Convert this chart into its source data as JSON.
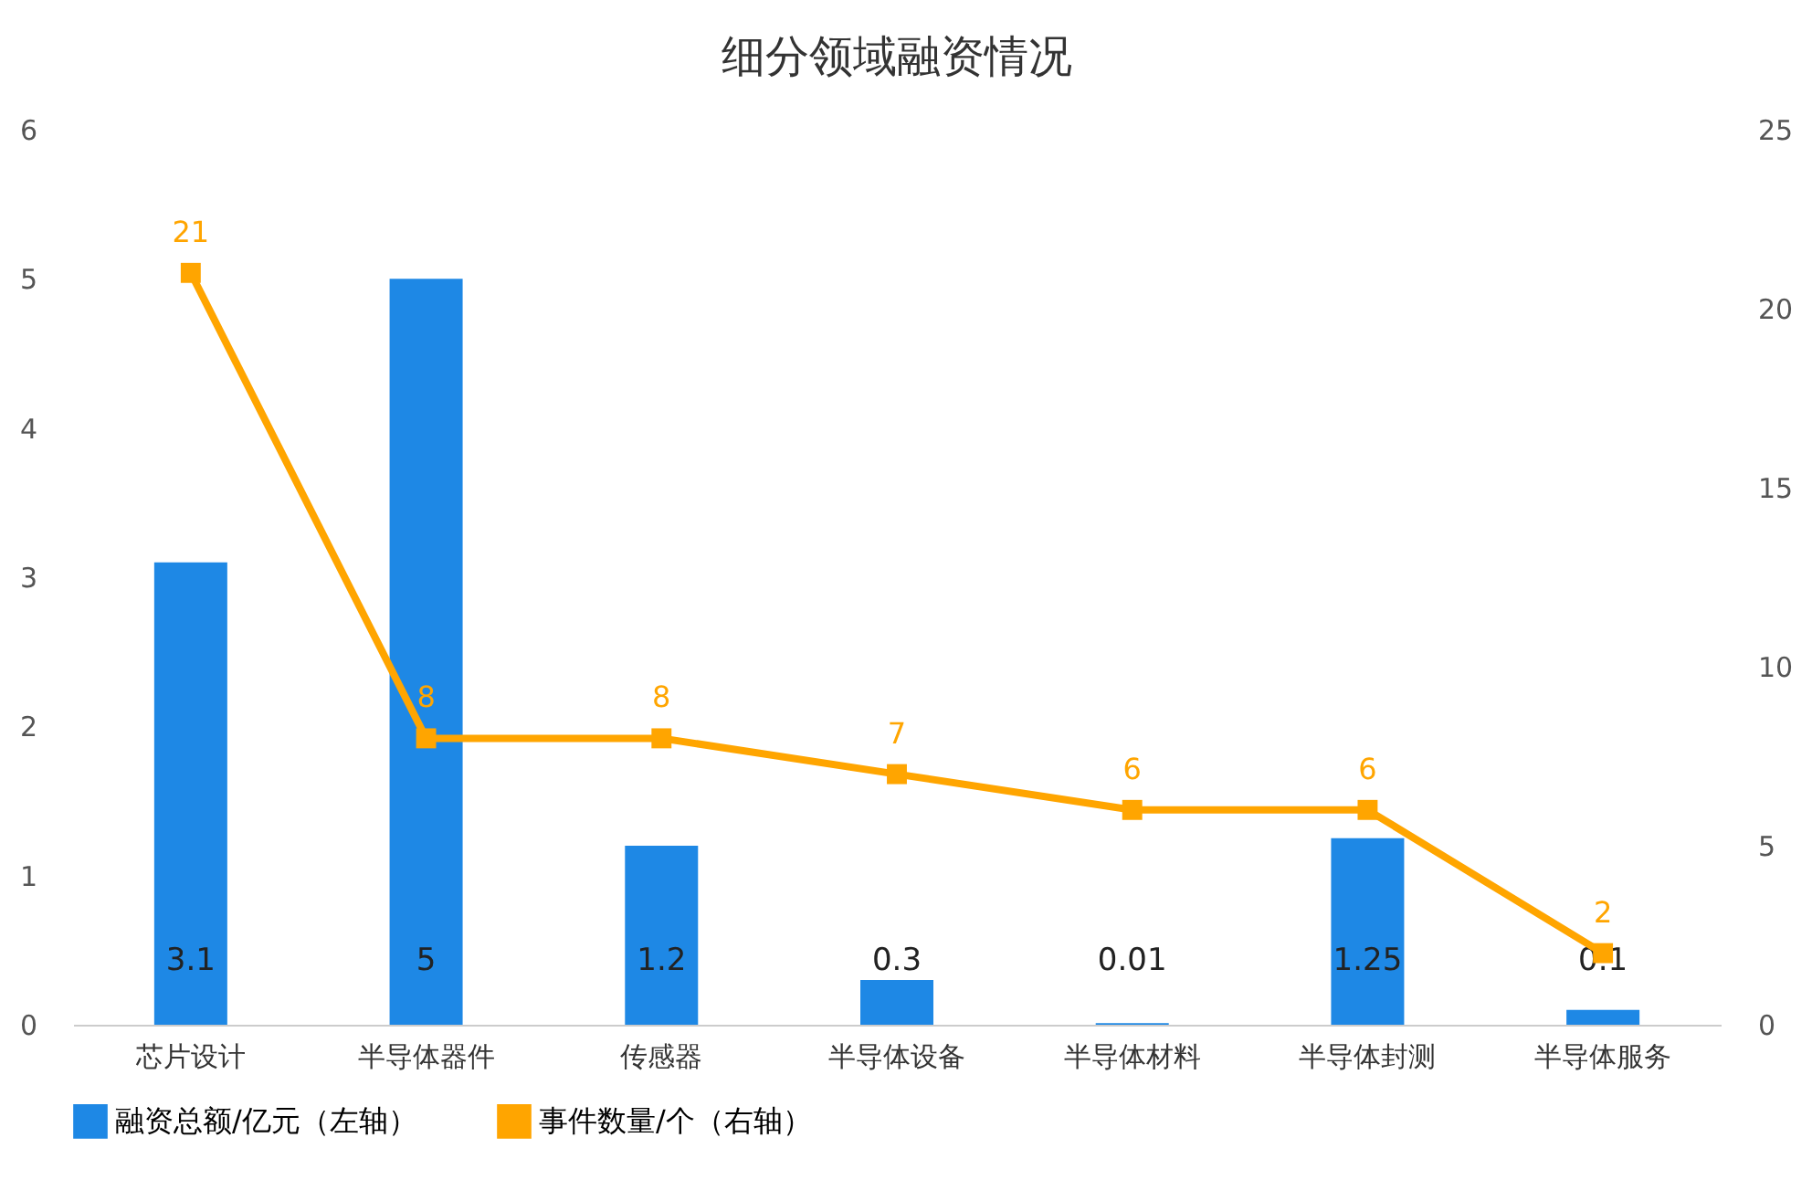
{
  "chart_data": {
    "type": "bar",
    "title": "细分领域融资情况",
    "categories": [
      "芯片设计",
      "半导体器件",
      "传感器",
      "半导体设备",
      "半导体材料",
      "半导体封测",
      "半导体服务"
    ],
    "series": [
      {
        "name": "融资总额/亿元（左轴）",
        "color": "#1e88e5",
        "values": [
          3.1,
          5,
          1.2,
          0.3,
          0.01,
          1.25,
          0.1
        ]
      },
      {
        "name": "事件数量/个（右轴）",
        "type": "line",
        "axis": "y2",
        "color": "#ffa500",
        "values": [
          21,
          8,
          8,
          7,
          6,
          6,
          2
        ]
      }
    ],
    "ylim": [
      0,
      6
    ],
    "yticks": [
      0,
      1,
      2,
      3,
      4,
      5,
      6
    ],
    "y2lim": [
      0,
      25
    ],
    "y2ticks": [
      0,
      5,
      10,
      15,
      20,
      25
    ],
    "data_labels": true,
    "grid": false,
    "legend": "bottom",
    "marker": "square",
    "line_style": "solid"
  }
}
